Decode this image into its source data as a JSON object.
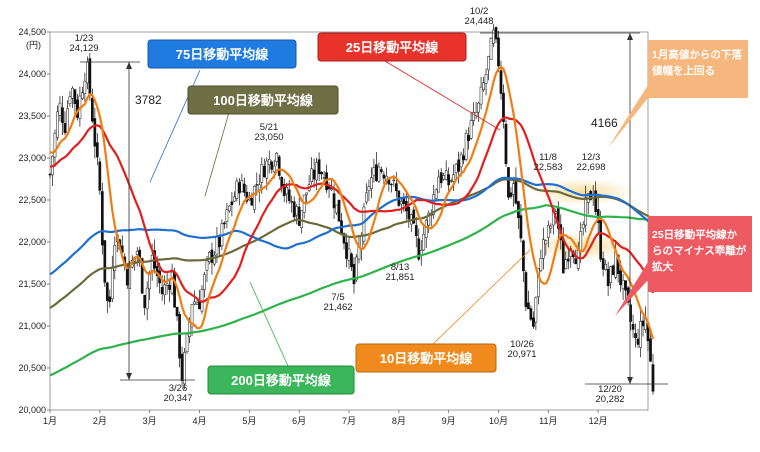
{
  "chart_data": {
    "type": "line",
    "y_unit_label": "(円)",
    "ylim": [
      20000,
      24500
    ],
    "y_ticks": [
      "20,000",
      "20,500",
      "21,000",
      "21,500",
      "22,000",
      "22,500",
      "23,000",
      "23,500",
      "24,000",
      "24,500"
    ],
    "x_ticks": [
      "1月",
      "2月",
      "3月",
      "4月",
      "5月",
      "6月",
      "7月",
      "8月",
      "9月",
      "10月",
      "11月",
      "12月"
    ],
    "series": [
      {
        "name": "75日移動平均線",
        "color": "#1f6fd1"
      },
      {
        "name": "100日移動平均線",
        "color": "#6b6b3a"
      },
      {
        "name": "25日移動平均線",
        "color": "#e02020"
      },
      {
        "name": "200日移動平均線",
        "color": "#2db34a"
      },
      {
        "name": "10日移動平均線",
        "color": "#f07d14"
      }
    ],
    "price_range_month": [
      1.5,
      12.4
    ],
    "annotations": [
      {
        "date": "1/23",
        "value": "24,129"
      },
      {
        "date": "3/26",
        "value": "20,347"
      },
      {
        "date": "5/21",
        "value": "23,050"
      },
      {
        "date": "7/5",
        "value": "21,462"
      },
      {
        "date": "8/13",
        "value": "21,851"
      },
      {
        "date": "10/2",
        "value": "24,448"
      },
      {
        "date": "10/26",
        "value": "20,971"
      },
      {
        "date": "11/8",
        "value": "22,583"
      },
      {
        "date": "12/3",
        "value": "22,698"
      },
      {
        "date": "12/20",
        "value": "20,282"
      }
    ],
    "diffs": [
      "3782",
      "4166"
    ],
    "callouts": [
      "1月高値からの下落値幅を上回る",
      "25日移動平均線からのマイナス乖離が拡大"
    ]
  },
  "colors": {
    "blue_box": "#1f7be0",
    "olive_box": "#6f6f46",
    "red_box": "#e8322a",
    "green_box": "#3bb65a",
    "orange_box": "#f08a1c",
    "peach_callout": "#f6b77e",
    "pink_callout": "#ee5a62",
    "highlight": "#f8dc9a"
  }
}
